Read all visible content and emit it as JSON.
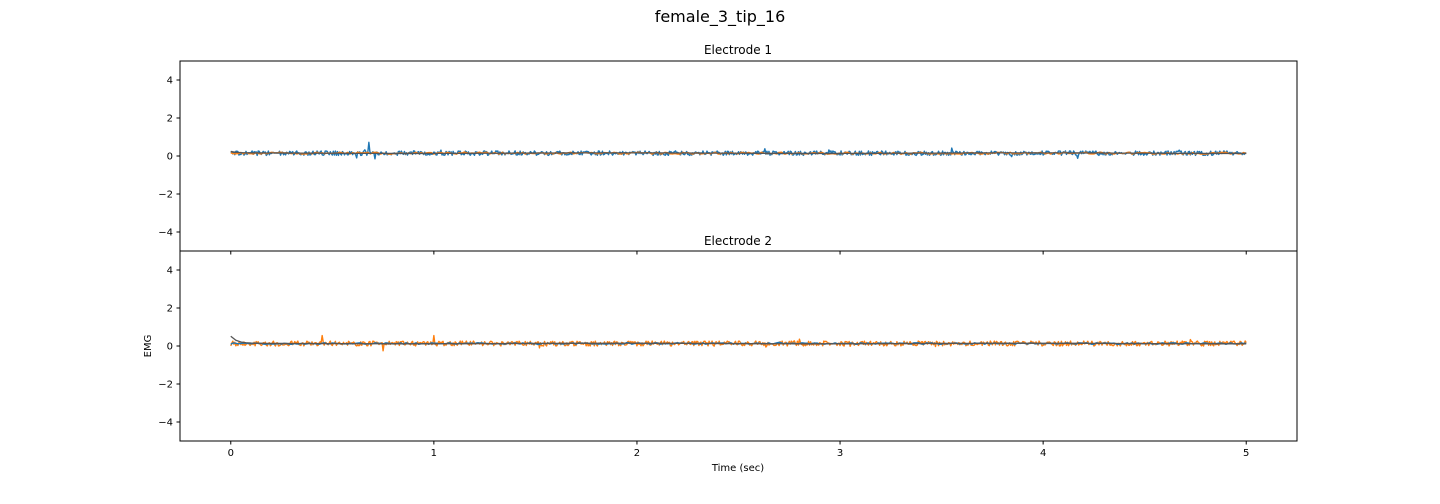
{
  "figure": {
    "title": "female_3_tip_16"
  },
  "colors": {
    "electrode_trace": "#1f77b4",
    "envelope_trace": "#ff7f0e",
    "smooth_trace": "#555555"
  },
  "chart_data": [
    {
      "type": "line",
      "title": "Electrode 1",
      "xlabel": "",
      "ylabel": "",
      "xlim": [
        -0.25,
        5.25
      ],
      "ylim": [
        -5,
        5
      ],
      "xticks": [
        0,
        1,
        2,
        3,
        4,
        5
      ],
      "yticks": [
        4,
        2,
        0,
        -2,
        -4
      ],
      "ytick_labels": [
        "4",
        "2",
        "0",
        "−2",
        "−4"
      ],
      "show_xtick_labels": false,
      "grid": false,
      "duration": 5,
      "series": [
        {
          "color": "#1f77b4",
          "kind": "noise",
          "baseline": 0.15,
          "amplitude": 0.12,
          "samples": 1000,
          "spikes": [
            [
              0.68,
              0.72
            ],
            [
              0.71,
              -0.15
            ],
            [
              0.62,
              -0.1
            ],
            [
              2.63,
              0.38
            ],
            [
              3.55,
              0.42
            ],
            [
              4.17,
              -0.12
            ]
          ]
        },
        {
          "color": "#ff7f0e",
          "kind": "noise",
          "baseline": 0.15,
          "amplitude": 0.05,
          "samples": 400,
          "spikes": []
        },
        {
          "color": "#555555",
          "kind": "smooth",
          "baseline": 0.15,
          "amplitude": 0.03,
          "samples": 200,
          "start": 0.22
        }
      ]
    },
    {
      "type": "line",
      "title": "Electrode 2",
      "xlabel": "Time (sec)",
      "ylabel": "EMG",
      "xlim": [
        -0.25,
        5.25
      ],
      "ylim": [
        -5,
        5
      ],
      "xticks": [
        0,
        1,
        2,
        3,
        4,
        5
      ],
      "yticks": [
        4,
        2,
        0,
        -2,
        -4
      ],
      "ytick_labels": [
        "4",
        "2",
        "0",
        "−2",
        "−4"
      ],
      "show_xtick_labels": true,
      "grid": false,
      "duration": 5,
      "series": [
        {
          "color": "#ff7f0e",
          "kind": "noise",
          "baseline": 0.13,
          "amplitude": 0.13,
          "samples": 1000,
          "spikes": [
            [
              0.45,
              0.55
            ],
            [
              0.75,
              -0.25
            ],
            [
              1.0,
              0.55
            ],
            [
              1.52,
              -0.1
            ]
          ]
        },
        {
          "color": "#1f77b4",
          "kind": "noise",
          "baseline": 0.13,
          "amplitude": 0.04,
          "samples": 400,
          "spikes": []
        },
        {
          "color": "#555555",
          "kind": "smooth",
          "baseline": 0.13,
          "amplitude": 0.03,
          "samples": 200,
          "start": 0.5
        }
      ]
    }
  ]
}
